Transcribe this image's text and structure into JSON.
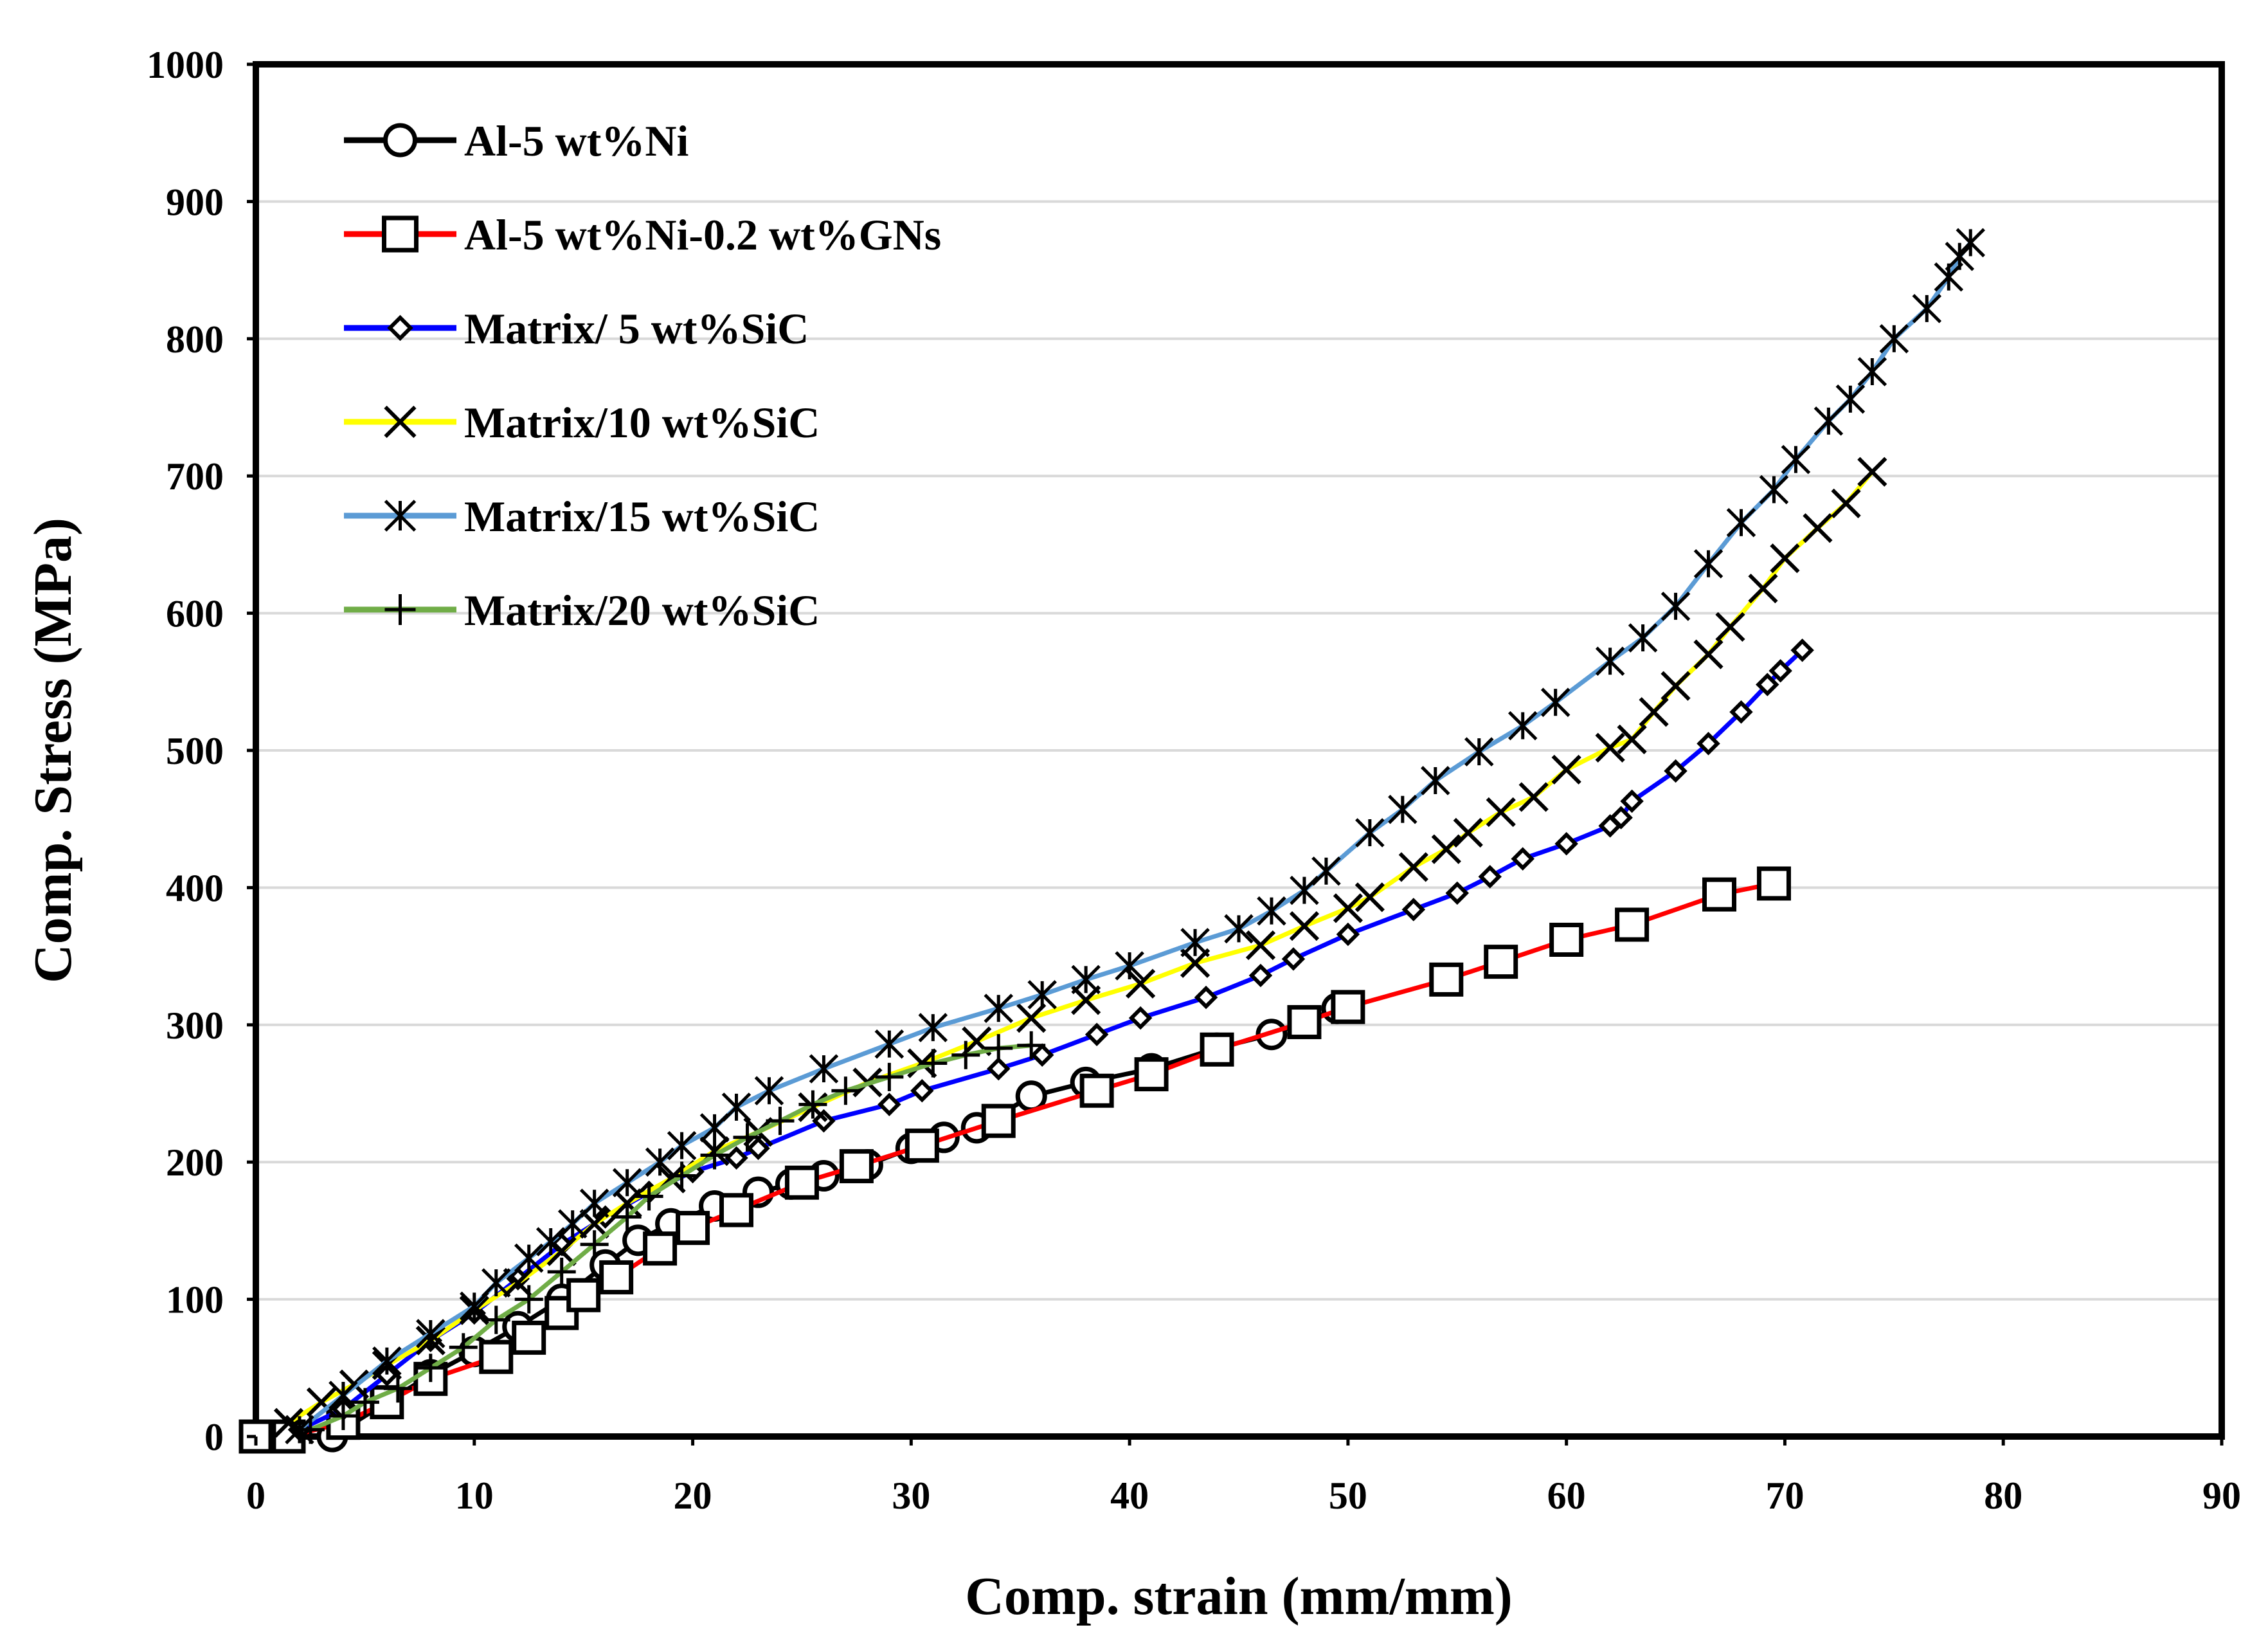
{
  "chart_data": {
    "type": "line",
    "title": "",
    "xlabel": "Comp. strain (mm/mm)",
    "ylabel": "Comp. Stress (MPa)",
    "xlim": [
      0,
      90
    ],
    "ylim": [
      0,
      1000
    ],
    "xticks": [
      "0",
      "10",
      "20",
      "30",
      "40",
      "50",
      "60",
      "70",
      "80",
      "90"
    ],
    "yticks": [
      "0",
      "100",
      "200",
      "300",
      "400",
      "500",
      "600",
      "700",
      "800",
      "900",
      "1000"
    ],
    "grid": "horizontal",
    "legend_position": "top-left",
    "series": [
      {
        "name": "Al-5 wt%Ni",
        "color": "#000000",
        "marker": "circle",
        "points": [
          [
            3.5,
            0
          ],
          [
            6,
            25
          ],
          [
            8,
            45
          ],
          [
            10,
            62
          ],
          [
            12,
            80
          ],
          [
            14,
            100
          ],
          [
            16,
            125
          ],
          [
            17.5,
            143
          ],
          [
            19,
            155
          ],
          [
            21,
            168
          ],
          [
            23,
            178
          ],
          [
            24.5,
            184
          ],
          [
            26,
            190
          ],
          [
            28,
            198
          ],
          [
            30,
            210
          ],
          [
            31.5,
            218
          ],
          [
            33,
            225
          ],
          [
            35.5,
            248
          ],
          [
            38,
            258
          ],
          [
            41,
            268
          ],
          [
            44,
            283
          ],
          [
            46.5,
            293
          ],
          [
            48,
            302
          ],
          [
            49.5,
            312
          ]
        ]
      },
      {
        "name": "Al-5 wt%Ni-0.2 wt%GNs",
        "color": "#ff0000",
        "marker": "square",
        "points": [
          [
            0,
            0
          ],
          [
            1.5,
            0
          ],
          [
            4,
            10
          ],
          [
            6,
            25
          ],
          [
            8,
            42
          ],
          [
            11,
            58
          ],
          [
            12.5,
            72
          ],
          [
            14,
            90
          ],
          [
            15,
            103
          ],
          [
            16.5,
            116
          ],
          [
            18.5,
            137
          ],
          [
            20,
            152
          ],
          [
            22,
            165
          ],
          [
            25,
            185
          ],
          [
            27.5,
            197
          ],
          [
            30.5,
            212
          ],
          [
            34,
            230
          ],
          [
            38.5,
            252
          ],
          [
            41,
            264
          ],
          [
            44,
            282
          ],
          [
            48,
            302
          ],
          [
            50,
            313
          ],
          [
            54.5,
            333
          ],
          [
            57,
            346
          ],
          [
            60,
            362
          ],
          [
            63,
            373
          ],
          [
            67,
            395
          ],
          [
            69.5,
            403
          ]
        ]
      },
      {
        "name": "Matrix/ 5 wt%SiC",
        "color": "#0000ff",
        "marker": "diamond",
        "points": [
          [
            2,
            5
          ],
          [
            4,
            20
          ],
          [
            6,
            45
          ],
          [
            8,
            70
          ],
          [
            10,
            90
          ],
          [
            12,
            115
          ],
          [
            14,
            140
          ],
          [
            16,
            160
          ],
          [
            18,
            178
          ],
          [
            20,
            193
          ],
          [
            22,
            203
          ],
          [
            23,
            210
          ],
          [
            26,
            230
          ],
          [
            29,
            242
          ],
          [
            30.5,
            252
          ],
          [
            34,
            268
          ],
          [
            36,
            278
          ],
          [
            38.5,
            293
          ],
          [
            40.5,
            305
          ],
          [
            43.5,
            320
          ],
          [
            46,
            336
          ],
          [
            47.5,
            348
          ],
          [
            50,
            366
          ],
          [
            53,
            384
          ],
          [
            55,
            396
          ],
          [
            56.5,
            408
          ],
          [
            58,
            421
          ],
          [
            60,
            432
          ],
          [
            62,
            445
          ],
          [
            62.5,
            451
          ],
          [
            63,
            463
          ],
          [
            65,
            485
          ],
          [
            66.5,
            505
          ],
          [
            68,
            528
          ],
          [
            69.2,
            548
          ],
          [
            69.8,
            558
          ],
          [
            70.8,
            573
          ]
        ]
      },
      {
        "name": "Matrix/10 wt%SiC",
        "color": "#ffff00",
        "marker": "x",
        "points": [
          [
            1.5,
            10
          ],
          [
            3,
            25
          ],
          [
            4.5,
            38
          ],
          [
            6,
            52
          ],
          [
            8,
            70
          ],
          [
            10,
            92
          ],
          [
            12,
            112
          ],
          [
            14,
            135
          ],
          [
            15.5,
            155
          ],
          [
            17,
            170
          ],
          [
            19,
            188
          ],
          [
            21,
            208
          ],
          [
            23,
            222
          ],
          [
            25.5,
            240
          ],
          [
            28,
            258
          ],
          [
            30.5,
            272
          ],
          [
            33,
            288
          ],
          [
            35.5,
            305
          ],
          [
            38,
            318
          ],
          [
            40.5,
            330
          ],
          [
            43,
            345
          ],
          [
            46,
            358
          ],
          [
            48,
            372
          ],
          [
            50,
            385
          ],
          [
            51,
            393
          ],
          [
            53,
            415
          ],
          [
            54.5,
            428
          ],
          [
            55.5,
            440
          ],
          [
            57,
            455
          ],
          [
            58.5,
            466
          ],
          [
            60,
            486
          ],
          [
            62,
            502
          ],
          [
            63,
            508
          ],
          [
            64,
            528
          ],
          [
            65,
            547
          ],
          [
            66.5,
            570
          ],
          [
            67.5,
            590
          ],
          [
            69,
            618
          ],
          [
            70,
            640
          ],
          [
            71.5,
            662
          ],
          [
            72.8,
            680
          ],
          [
            74,
            703
          ]
        ]
      },
      {
        "name": "Matrix/15 wt%SiC",
        "color": "#5b9bd5",
        "marker": "star",
        "points": [
          [
            2,
            5
          ],
          [
            4,
            30
          ],
          [
            6,
            55
          ],
          [
            8,
            75
          ],
          [
            10,
            95
          ],
          [
            11,
            112
          ],
          [
            12.5,
            130
          ],
          [
            13.5,
            142
          ],
          [
            14.5,
            155
          ],
          [
            15.5,
            170
          ],
          [
            17,
            185
          ],
          [
            18.5,
            200
          ],
          [
            19.5,
            212
          ],
          [
            21,
            225
          ],
          [
            22,
            240
          ],
          [
            23.5,
            252
          ],
          [
            26,
            268
          ],
          [
            29,
            286
          ],
          [
            31,
            298
          ],
          [
            34,
            312
          ],
          [
            36,
            322
          ],
          [
            38,
            333
          ],
          [
            40,
            343
          ],
          [
            43,
            360
          ],
          [
            45,
            370
          ],
          [
            46.5,
            383
          ],
          [
            48,
            398
          ],
          [
            49,
            412
          ],
          [
            51,
            440
          ],
          [
            52.5,
            457
          ],
          [
            54,
            478
          ],
          [
            56,
            499
          ],
          [
            58,
            518
          ],
          [
            59.5,
            535
          ],
          [
            62,
            565
          ],
          [
            63.5,
            582
          ],
          [
            65,
            605
          ],
          [
            66.5,
            636
          ],
          [
            68,
            666
          ],
          [
            69.5,
            690
          ],
          [
            70.5,
            712
          ],
          [
            72,
            740
          ],
          [
            73,
            756
          ],
          [
            74,
            776
          ],
          [
            75,
            800
          ],
          [
            76.5,
            822
          ],
          [
            77.5,
            845
          ],
          [
            78,
            860
          ],
          [
            78.5,
            870
          ]
        ]
      },
      {
        "name": "Matrix/20 wt%SiC",
        "color": "#70ad47",
        "marker": "plus",
        "points": [
          [
            2.5,
            5
          ],
          [
            4,
            15
          ],
          [
            5,
            25
          ],
          [
            6.5,
            35
          ],
          [
            8,
            50
          ],
          [
            9.5,
            65
          ],
          [
            11,
            85
          ],
          [
            12.5,
            100
          ],
          [
            14,
            120
          ],
          [
            15.5,
            140
          ],
          [
            17,
            160
          ],
          [
            18,
            175
          ],
          [
            19.5,
            190
          ],
          [
            21,
            205
          ],
          [
            22.5,
            218
          ],
          [
            24,
            230
          ],
          [
            25.5,
            242
          ],
          [
            27,
            252
          ],
          [
            29,
            262
          ],
          [
            31,
            272
          ],
          [
            32.5,
            278
          ],
          [
            34,
            283
          ],
          [
            35.5,
            285
          ]
        ]
      }
    ]
  }
}
